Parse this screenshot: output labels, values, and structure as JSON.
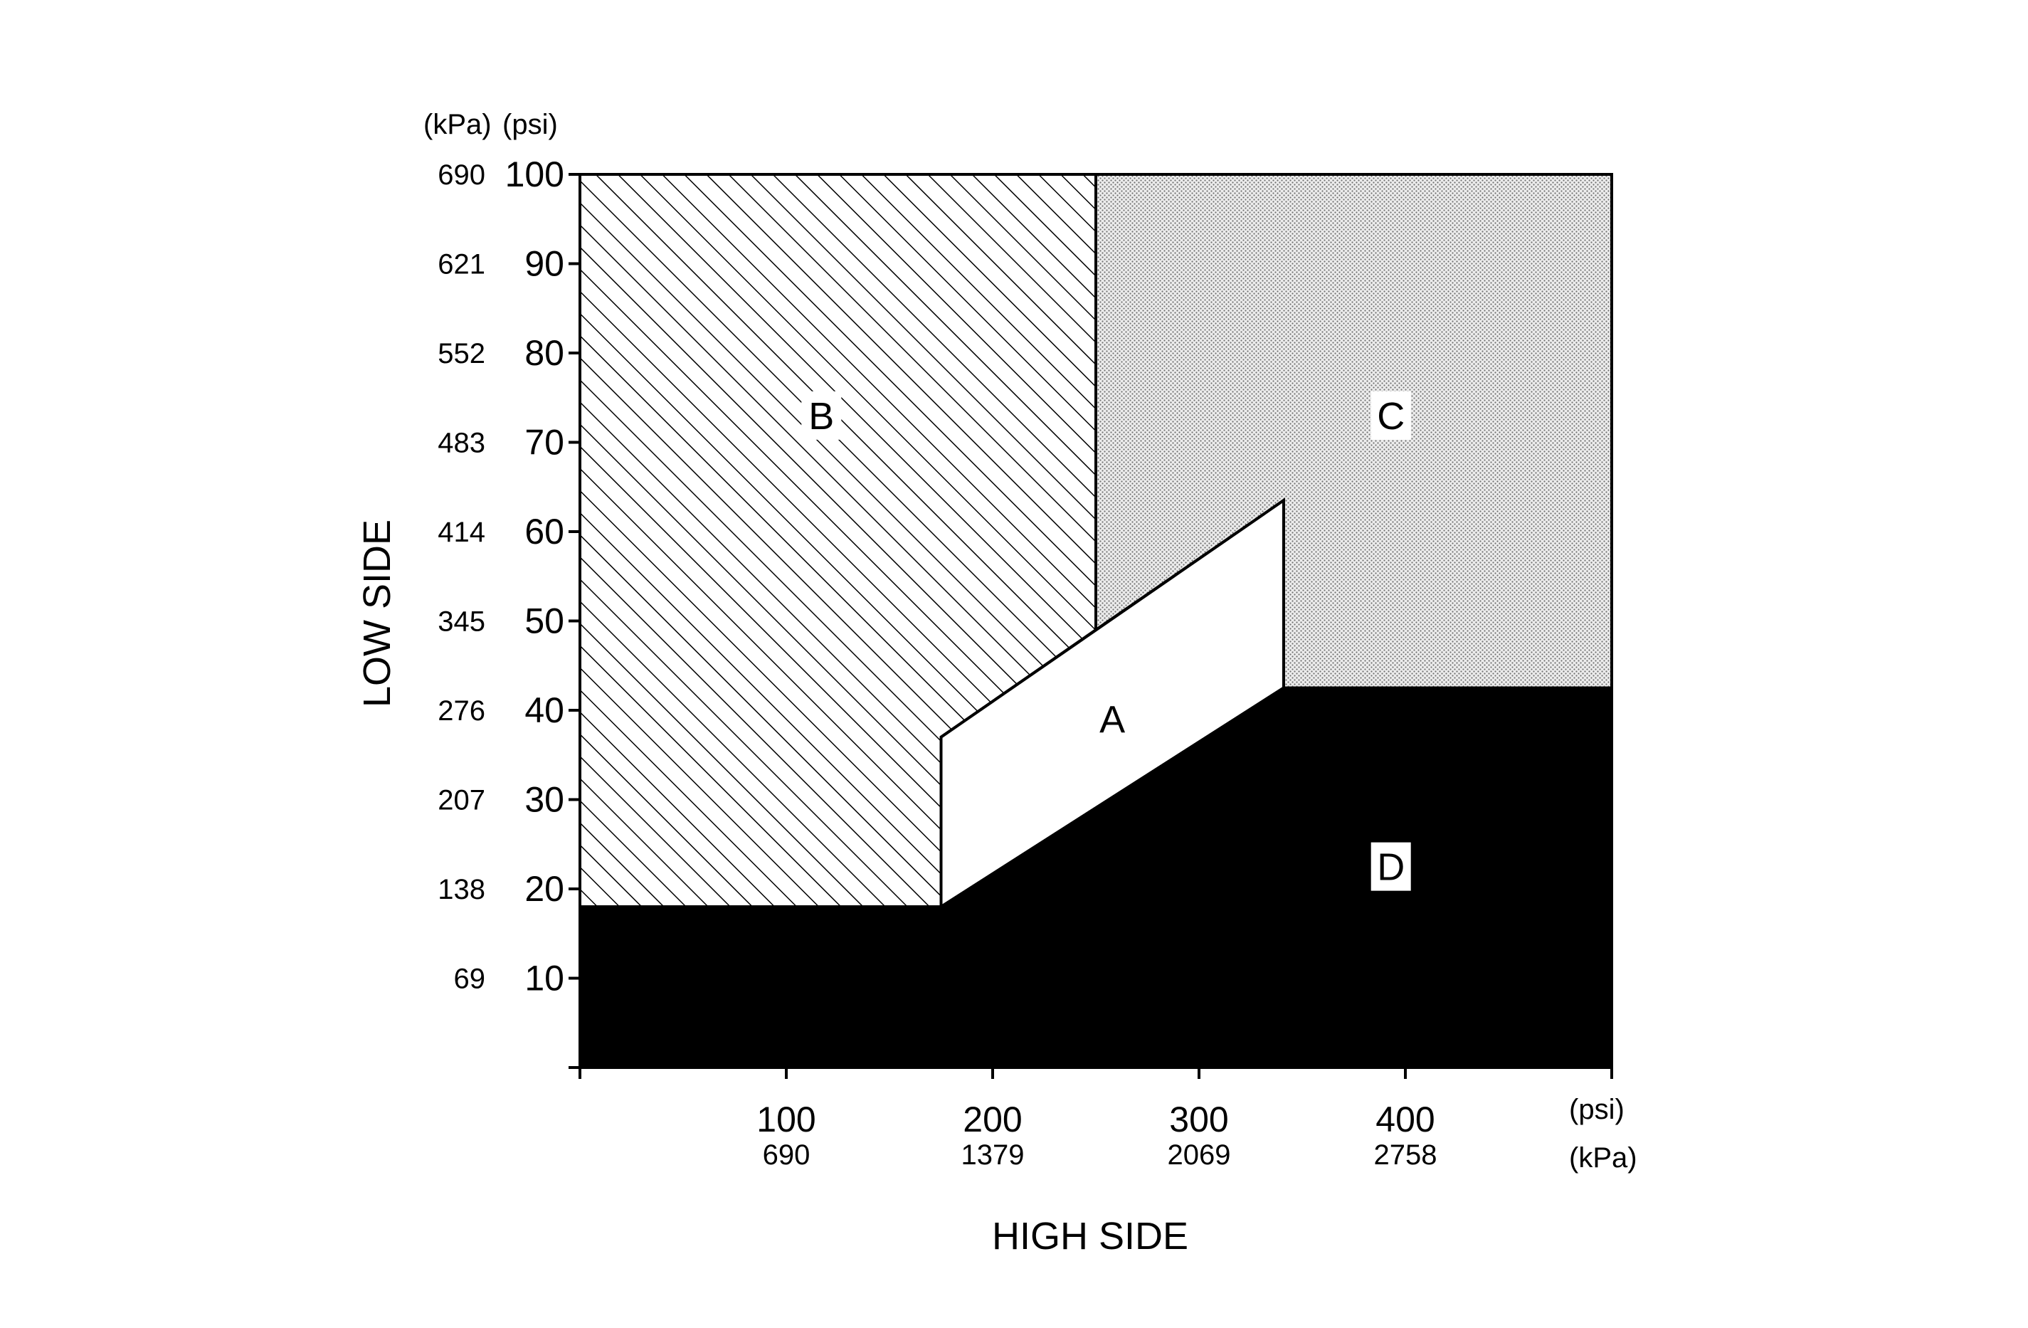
{
  "chart_data": {
    "type": "area",
    "title": "",
    "xlabel": "HIGH SIDE",
    "ylabel": "LOW SIDE",
    "x_unit_primary": "(psi)",
    "x_unit_secondary": "(kPa)",
    "y_unit_secondary": "(kPa)",
    "y_unit_primary": "(psi)",
    "xlim": [
      0,
      500
    ],
    "ylim": [
      0,
      100
    ],
    "grid": false,
    "x_ticks": [
      {
        "psi": "100",
        "kpa": "690",
        "value": 100
      },
      {
        "psi": "200",
        "kpa": "1379",
        "value": 200
      },
      {
        "psi": "300",
        "kpa": "2069",
        "value": 300
      },
      {
        "psi": "400",
        "kpa": "2758",
        "value": 400
      }
    ],
    "x_minor_ticks": [
      0,
      500
    ],
    "y_ticks": [
      {
        "psi": "10",
        "kpa": "69",
        "value": 10
      },
      {
        "psi": "20",
        "kpa": "138",
        "value": 20
      },
      {
        "psi": "30",
        "kpa": "207",
        "value": 30
      },
      {
        "psi": "40",
        "kpa": "276",
        "value": 40
      },
      {
        "psi": "50",
        "kpa": "345",
        "value": 50
      },
      {
        "psi": "60",
        "kpa": "414",
        "value": 60
      },
      {
        "psi": "70",
        "kpa": "483",
        "value": 70
      },
      {
        "psi": "80",
        "kpa": "552",
        "value": 80
      },
      {
        "psi": "90",
        "kpa": "621",
        "value": 90
      },
      {
        "psi": "100",
        "kpa": "690",
        "value": 100
      }
    ],
    "y_minor_ticks": [
      0
    ],
    "regions": [
      {
        "id": "B",
        "label": "B",
        "fill": "hatch",
        "polygon": [
          [
            0,
            100
          ],
          [
            250,
            100
          ],
          [
            250,
            49
          ],
          [
            175,
            37
          ],
          [
            175,
            18
          ],
          [
            0,
            18
          ]
        ],
        "label_at": [
          117,
          73
        ]
      },
      {
        "id": "C",
        "label": "C",
        "fill": "dots",
        "polygon": [
          [
            250,
            100
          ],
          [
            500,
            100
          ],
          [
            500,
            42.5
          ],
          [
            341,
            42.5
          ],
          [
            341,
            63.5
          ],
          [
            250,
            49
          ]
        ],
        "label_at": [
          393,
          73
        ]
      },
      {
        "id": "A",
        "label": "A",
        "fill": "#ffffff",
        "polygon": [
          [
            175,
            37
          ],
          [
            341,
            63.5
          ],
          [
            341,
            42.5
          ],
          [
            175,
            18
          ]
        ],
        "label_at": [
          258,
          39
        ]
      },
      {
        "id": "D",
        "label": "D",
        "fill": "#000000",
        "polygon": [
          [
            0,
            18
          ],
          [
            175,
            18
          ],
          [
            341,
            42.5
          ],
          [
            500,
            42.5
          ],
          [
            500,
            0
          ],
          [
            0,
            0
          ]
        ],
        "label_at": [
          393,
          22.5
        ]
      }
    ]
  }
}
